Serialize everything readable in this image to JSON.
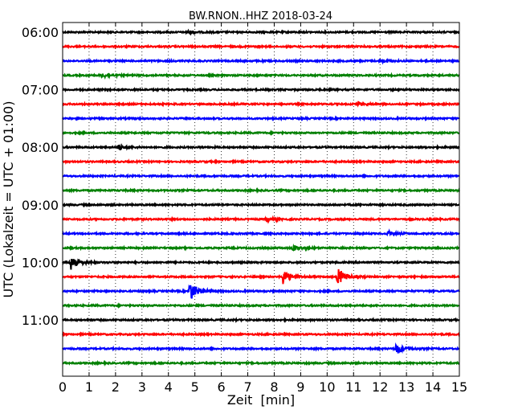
{
  "chart_data": {
    "type": "line",
    "title": "BW.RNON..HHZ 2018-03-24",
    "xlabel": "Zeit  [min]",
    "ylabel": "UTC (Lokalzeit = UTC + 01:00)",
    "xlim": [
      0,
      15
    ],
    "x_ticks": [
      "0",
      "1",
      "2",
      "3",
      "4",
      "5",
      "6",
      "7",
      "8",
      "9",
      "10",
      "11",
      "12",
      "13",
      "14",
      "15"
    ],
    "y_ticks": [
      "06:00",
      "07:00",
      "08:00",
      "09:00",
      "10:00",
      "11:00"
    ],
    "grid": "vertical dotted",
    "trace_colors": [
      "#000000",
      "#ff0000",
      "#0000ff",
      "#008000"
    ],
    "traces": [
      {
        "start": "06:00",
        "events": [
          {
            "t": 4.7,
            "amp": 2
          }
        ]
      },
      {
        "start": "06:15",
        "events": []
      },
      {
        "start": "06:30",
        "events": [
          {
            "t": 12.0,
            "amp": 2
          }
        ]
      },
      {
        "start": "06:45",
        "events": [
          {
            "t": 1.5,
            "amp": 3
          }
        ]
      },
      {
        "start": "07:00",
        "events": []
      },
      {
        "start": "07:15",
        "events": [
          {
            "t": 11.2,
            "amp": 2
          }
        ]
      },
      {
        "start": "07:30",
        "events": []
      },
      {
        "start": "07:45",
        "events": []
      },
      {
        "start": "08:00",
        "events": [
          {
            "t": 2.1,
            "amp": 3
          }
        ]
      },
      {
        "start": "08:15",
        "events": []
      },
      {
        "start": "08:30",
        "events": []
      },
      {
        "start": "08:45",
        "events": []
      },
      {
        "start": "09:00",
        "events": []
      },
      {
        "start": "09:15",
        "events": [
          {
            "t": 7.7,
            "amp": 3
          }
        ]
      },
      {
        "start": "09:30",
        "events": [
          {
            "t": 12.3,
            "amp": 3
          }
        ]
      },
      {
        "start": "09:45",
        "events": [
          {
            "t": 8.7,
            "amp": 4
          }
        ]
      },
      {
        "start": "10:00",
        "events": [
          {
            "t": 0.3,
            "amp": 12
          }
        ]
      },
      {
        "start": "10:15",
        "events": [
          {
            "t": 8.3,
            "amp": 11
          },
          {
            "t": 10.4,
            "amp": 12
          }
        ]
      },
      {
        "start": "10:30",
        "events": [
          {
            "t": 4.8,
            "amp": 14
          }
        ]
      },
      {
        "start": "10:45",
        "events": []
      },
      {
        "start": "11:00",
        "events": []
      },
      {
        "start": "11:15",
        "events": []
      },
      {
        "start": "11:30",
        "events": [
          {
            "t": 12.6,
            "amp": 8
          }
        ]
      },
      {
        "start": "11:45",
        "events": []
      }
    ]
  }
}
